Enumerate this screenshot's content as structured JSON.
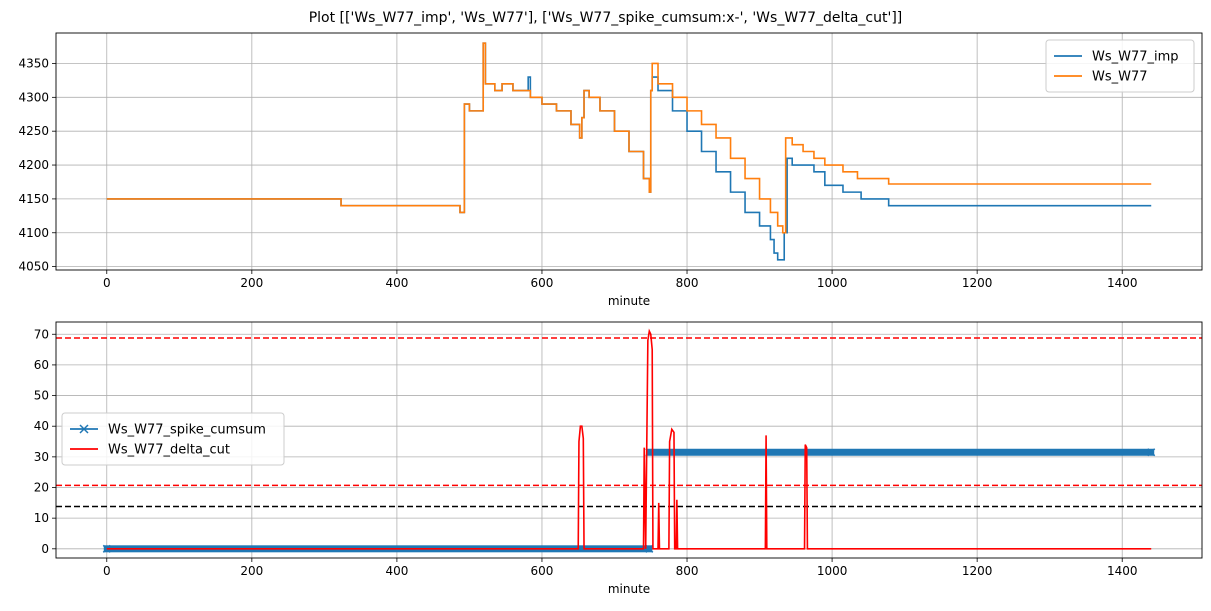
{
  "figure": {
    "title": "Plot [['Ws_W77_imp', 'Ws_W77'], ['Ws_W77_spike_cumsum:x-', 'Ws_W77_delta_cut']]"
  },
  "chart_data": [
    {
      "type": "line",
      "xlabel": "minute",
      "ylabel": "",
      "xlim": [
        -70,
        1510
      ],
      "ylim": [
        4045,
        4395
      ],
      "xticks": [
        0,
        200,
        400,
        600,
        800,
        1000,
        1200,
        1400
      ],
      "yticks": [
        4050,
        4100,
        4150,
        4200,
        4250,
        4300,
        4350
      ],
      "grid": true,
      "legend": "top-right",
      "series": [
        {
          "name": "Ws_W77_imp",
          "color": "#1f77b4",
          "step": true,
          "points": [
            [
              0,
              4150
            ],
            [
              320,
              4150
            ],
            [
              323,
              4140
            ],
            [
              485,
              4140
            ],
            [
              487,
              4130
            ],
            [
              492,
              4130
            ],
            [
              493,
              4290
            ],
            [
              500,
              4280
            ],
            [
              518,
              4280
            ],
            [
              519,
              4380
            ],
            [
              522,
              4320
            ],
            [
              535,
              4310
            ],
            [
              545,
              4320
            ],
            [
              560,
              4310
            ],
            [
              578,
              4310
            ],
            [
              581,
              4330
            ],
            [
              584,
              4300
            ],
            [
              600,
              4290
            ],
            [
              620,
              4280
            ],
            [
              640,
              4260
            ],
            [
              652,
              4240
            ],
            [
              655,
              4270
            ],
            [
              658,
              4310
            ],
            [
              665,
              4300
            ],
            [
              680,
              4280
            ],
            [
              700,
              4250
            ],
            [
              720,
              4220
            ],
            [
              740,
              4180
            ],
            [
              748,
              4160
            ],
            [
              750,
              4310
            ],
            [
              752,
              4330
            ],
            [
              760,
              4310
            ],
            [
              780,
              4280
            ],
            [
              800,
              4250
            ],
            [
              820,
              4220
            ],
            [
              840,
              4190
            ],
            [
              860,
              4160
            ],
            [
              880,
              4130
            ],
            [
              900,
              4110
            ],
            [
              915,
              4090
            ],
            [
              920,
              4070
            ],
            [
              925,
              4060
            ],
            [
              930,
              4060
            ],
            [
              934,
              4100
            ],
            [
              938,
              4210
            ],
            [
              945,
              4200
            ],
            [
              960,
              4200
            ],
            [
              975,
              4190
            ],
            [
              990,
              4170
            ],
            [
              1000,
              4170
            ],
            [
              1015,
              4160
            ],
            [
              1035,
              4160
            ],
            [
              1040,
              4150
            ],
            [
              1075,
              4150
            ],
            [
              1078,
              4140
            ],
            [
              1440,
              4140
            ]
          ]
        },
        {
          "name": "Ws_W77",
          "color": "#ff7f0e",
          "step": true,
          "points": [
            [
              0,
              4150
            ],
            [
              320,
              4150
            ],
            [
              323,
              4140
            ],
            [
              485,
              4140
            ],
            [
              487,
              4130
            ],
            [
              492,
              4130
            ],
            [
              493,
              4290
            ],
            [
              500,
              4280
            ],
            [
              518,
              4280
            ],
            [
              519,
              4380
            ],
            [
              522,
              4320
            ],
            [
              535,
              4310
            ],
            [
              545,
              4320
            ],
            [
              560,
              4310
            ],
            [
              578,
              4310
            ],
            [
              584,
              4300
            ],
            [
              600,
              4290
            ],
            [
              620,
              4280
            ],
            [
              640,
              4260
            ],
            [
              652,
              4240
            ],
            [
              655,
              4270
            ],
            [
              658,
              4310
            ],
            [
              665,
              4300
            ],
            [
              680,
              4280
            ],
            [
              700,
              4250
            ],
            [
              720,
              4220
            ],
            [
              740,
              4180
            ],
            [
              748,
              4160
            ],
            [
              750,
              4310
            ],
            [
              752,
              4350
            ],
            [
              760,
              4320
            ],
            [
              780,
              4300
            ],
            [
              800,
              4280
            ],
            [
              820,
              4260
            ],
            [
              840,
              4240
            ],
            [
              860,
              4210
            ],
            [
              880,
              4180
            ],
            [
              900,
              4150
            ],
            [
              915,
              4130
            ],
            [
              925,
              4110
            ],
            [
              932,
              4100
            ],
            [
              936,
              4240
            ],
            [
              945,
              4230
            ],
            [
              960,
              4220
            ],
            [
              975,
              4210
            ],
            [
              990,
              4200
            ],
            [
              1000,
              4200
            ],
            [
              1015,
              4190
            ],
            [
              1035,
              4180
            ],
            [
              1060,
              4180
            ],
            [
              1075,
              4180
            ],
            [
              1078,
              4172
            ],
            [
              1440,
              4172
            ]
          ]
        }
      ]
    },
    {
      "type": "line",
      "xlabel": "minute",
      "ylabel": "",
      "xlim": [
        -70,
        1510
      ],
      "ylim": [
        -3,
        74
      ],
      "xticks": [
        0,
        200,
        400,
        600,
        800,
        1000,
        1200,
        1400
      ],
      "yticks": [
        0,
        10,
        20,
        30,
        40,
        50,
        60,
        70
      ],
      "grid": true,
      "legend": "center-left",
      "hlines": [
        {
          "y": 68.8,
          "color": "#ff0000",
          "style": "dashed"
        },
        {
          "y": 20.7,
          "color": "#ff0000",
          "style": "dashed"
        },
        {
          "y": 13.8,
          "color": "#000000",
          "style": "dashed"
        }
      ],
      "series": [
        {
          "name": "Ws_W77_spike_cumsum",
          "color": "#1f77b4",
          "marker": "x",
          "segments": [
            {
              "x_start": 0,
              "x_end": 748,
              "y": 0
            },
            {
              "x_start": 748,
              "x_end": 1440,
              "y": 31.5
            }
          ]
        },
        {
          "name": "Ws_W77_delta_cut",
          "color": "#ff0000",
          "points": [
            [
              0,
              0
            ],
            [
              650,
              0
            ],
            [
              651,
              35
            ],
            [
              653,
              40
            ],
            [
              655,
              40
            ],
            [
              657,
              36
            ],
            [
              658,
              0
            ],
            [
              740,
              0
            ],
            [
              741,
              33
            ],
            [
              743,
              0
            ],
            [
              746,
              68
            ],
            [
              748,
              71
            ],
            [
              750,
              70
            ],
            [
              752,
              65
            ],
            [
              753,
              0
            ],
            [
              760,
              0
            ],
            [
              761,
              15
            ],
            [
              762,
              0
            ],
            [
              775,
              0
            ],
            [
              776,
              35
            ],
            [
              779,
              39
            ],
            [
              782,
              38
            ],
            [
              783,
              0
            ],
            [
              785,
              0
            ],
            [
              786,
              16
            ],
            [
              787,
              0
            ],
            [
              908,
              0
            ],
            [
              909,
              37
            ],
            [
              910,
              0
            ],
            [
              962,
              0
            ],
            [
              963,
              34
            ],
            [
              965,
              33
            ],
            [
              966,
              0
            ],
            [
              1440,
              0
            ]
          ]
        }
      ]
    }
  ]
}
